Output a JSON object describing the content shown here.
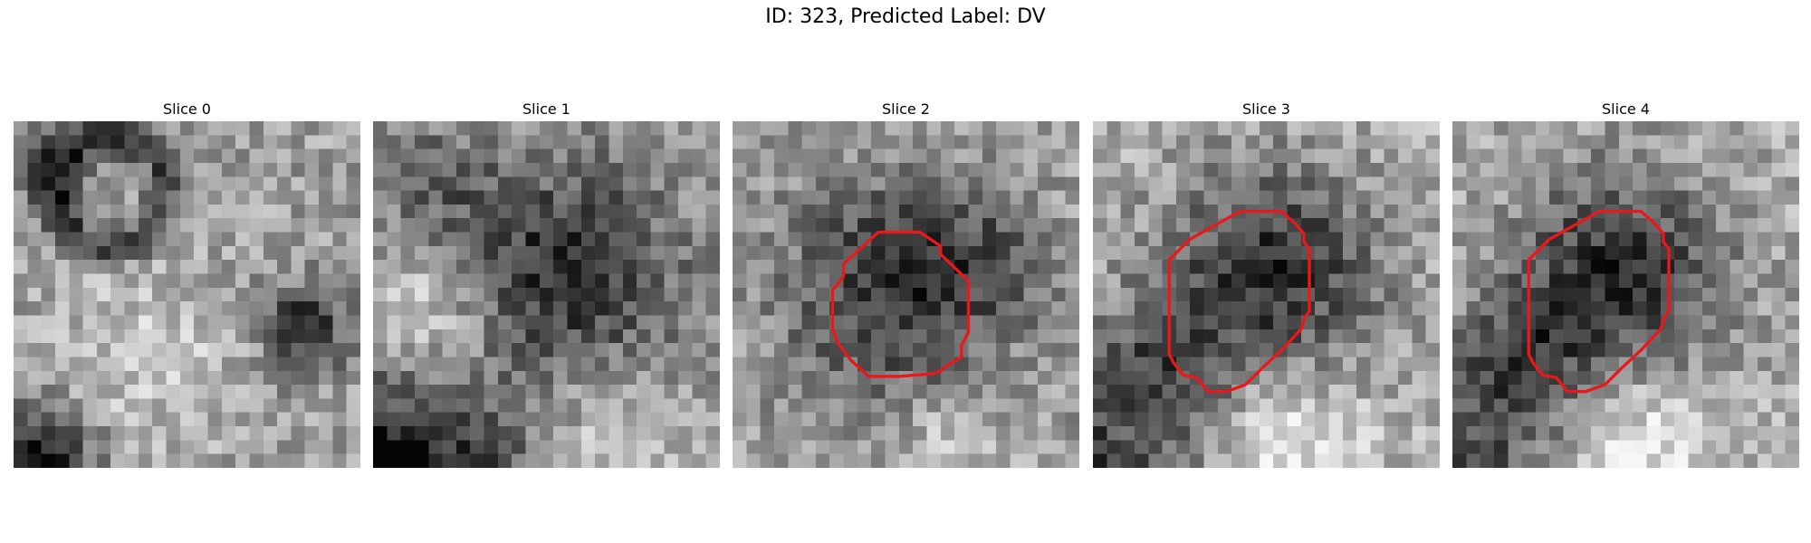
{
  "figure": {
    "title": "ID: 323, Predicted Label: DV"
  },
  "panels": [
    {
      "title": "Slice 0",
      "has_contour": false
    },
    {
      "title": "Slice 1",
      "has_contour": false
    },
    {
      "title": "Slice 2",
      "has_contour": true
    },
    {
      "title": "Slice 3",
      "has_contour": true
    },
    {
      "title": "Slice 4",
      "has_contour": true
    }
  ],
  "colors": {
    "contour": "#e8191d",
    "background": "#ffffff"
  }
}
